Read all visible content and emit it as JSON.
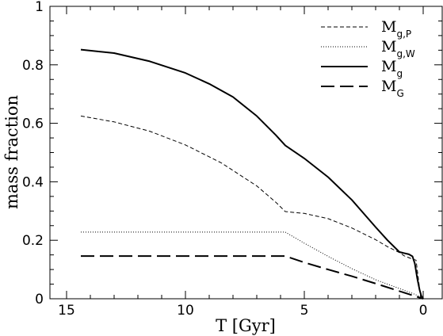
{
  "chart_data": {
    "type": "line",
    "xlabel": "T [Gyr]",
    "ylabel": "mass fraction",
    "xlim": [
      15.7,
      -0.8
    ],
    "ylim": [
      0,
      1
    ],
    "x_ticks": [
      "15",
      "10",
      "5",
      "0"
    ],
    "y_ticks": [
      "0",
      "0.2",
      "0.4",
      "0.6",
      "0.8",
      "1"
    ],
    "legend_position": "top-right",
    "series": [
      {
        "name": "M",
        "subscript": "g,P",
        "style": "dashed",
        "x": [
          14.4,
          13,
          11.5,
          10,
          8.5,
          7,
          6.2,
          5.8,
          5,
          4,
          3,
          2,
          1.5,
          1,
          0.8,
          0.5,
          0.3,
          0.1
        ],
        "y": [
          0.625,
          0.605,
          0.573,
          0.526,
          0.465,
          0.386,
          0.33,
          0.298,
          0.292,
          0.274,
          0.242,
          0.202,
          0.178,
          0.158,
          0.147,
          0.137,
          0.132,
          0.0
        ]
      },
      {
        "name": "M",
        "subscript": "g,W",
        "style": "dotted",
        "x": [
          14.4,
          12,
          10,
          8,
          6.2,
          5.8,
          5,
          4,
          3,
          2,
          1,
          0.5,
          0.2,
          0.0
        ],
        "y": [
          0.228,
          0.228,
          0.228,
          0.228,
          0.228,
          0.228,
          0.19,
          0.145,
          0.103,
          0.065,
          0.035,
          0.02,
          0.01,
          0.0
        ]
      },
      {
        "name": "M",
        "subscript": "g",
        "style": "solid",
        "x": [
          14.4,
          13,
          11.5,
          10,
          9,
          8,
          7,
          6.2,
          5.8,
          5,
          4,
          3,
          2,
          1.5,
          1,
          0.6,
          0.45,
          0.35,
          0.25,
          0.15,
          0.08,
          0.0
        ],
        "y": [
          0.852,
          0.84,
          0.812,
          0.772,
          0.735,
          0.69,
          0.625,
          0.56,
          0.524,
          0.48,
          0.416,
          0.338,
          0.245,
          0.2,
          0.16,
          0.152,
          0.145,
          0.12,
          0.07,
          0.03,
          0.01,
          0.0
        ]
      },
      {
        "name": "M",
        "subscript": "G",
        "style": "longdash",
        "x": [
          14.4,
          12,
          10,
          8,
          6.2,
          5.8,
          5,
          4,
          3,
          2,
          1,
          0.5,
          0.0
        ],
        "y": [
          0.146,
          0.146,
          0.146,
          0.146,
          0.146,
          0.146,
          0.124,
          0.1,
          0.077,
          0.052,
          0.026,
          0.013,
          0.0
        ]
      }
    ]
  }
}
